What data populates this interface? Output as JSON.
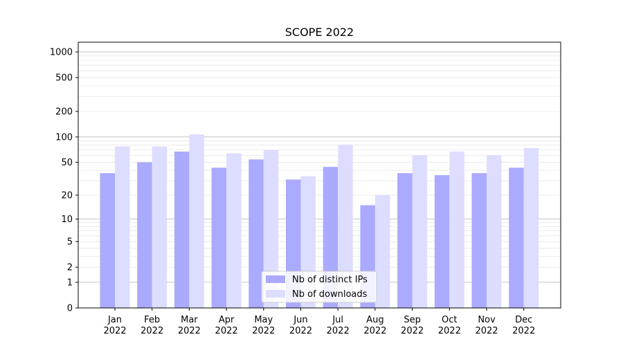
{
  "chart_data": {
    "type": "bar",
    "title": "SCOPE 2022",
    "xlabel": "",
    "ylabel": "",
    "y_scale": "symlog",
    "ylim": [
      0,
      1300
    ],
    "y_ticks": [
      0,
      1,
      2,
      5,
      10,
      20,
      50,
      100,
      200,
      500,
      1000
    ],
    "y_tick_labels": [
      "0",
      "1",
      "2",
      "5",
      "10",
      "20",
      "50",
      "100",
      "200",
      "500",
      "1000"
    ],
    "grid": true,
    "legend_position": "bottom-center",
    "categories": [
      {
        "month": "Jan",
        "year": "2022"
      },
      {
        "month": "Feb",
        "year": "2022"
      },
      {
        "month": "Mar",
        "year": "2022"
      },
      {
        "month": "Apr",
        "year": "2022"
      },
      {
        "month": "May",
        "year": "2022"
      },
      {
        "month": "Jun",
        "year": "2022"
      },
      {
        "month": "Jul",
        "year": "2022"
      },
      {
        "month": "Aug",
        "year": "2022"
      },
      {
        "month": "Sep",
        "year": "2022"
      },
      {
        "month": "Oct",
        "year": "2022"
      },
      {
        "month": "Nov",
        "year": "2022"
      },
      {
        "month": "Dec",
        "year": "2022"
      }
    ],
    "series": [
      {
        "name": "Nb of distinct IPs",
        "color": "#aaaaff",
        "values": [
          37,
          50,
          67,
          43,
          54,
          31,
          44,
          15,
          37,
          35,
          37,
          43
        ]
      },
      {
        "name": "Nb of downloads",
        "color": "#ddddff",
        "values": [
          77,
          77,
          107,
          64,
          70,
          34,
          81,
          20,
          61,
          67,
          61,
          74
        ]
      }
    ]
  }
}
